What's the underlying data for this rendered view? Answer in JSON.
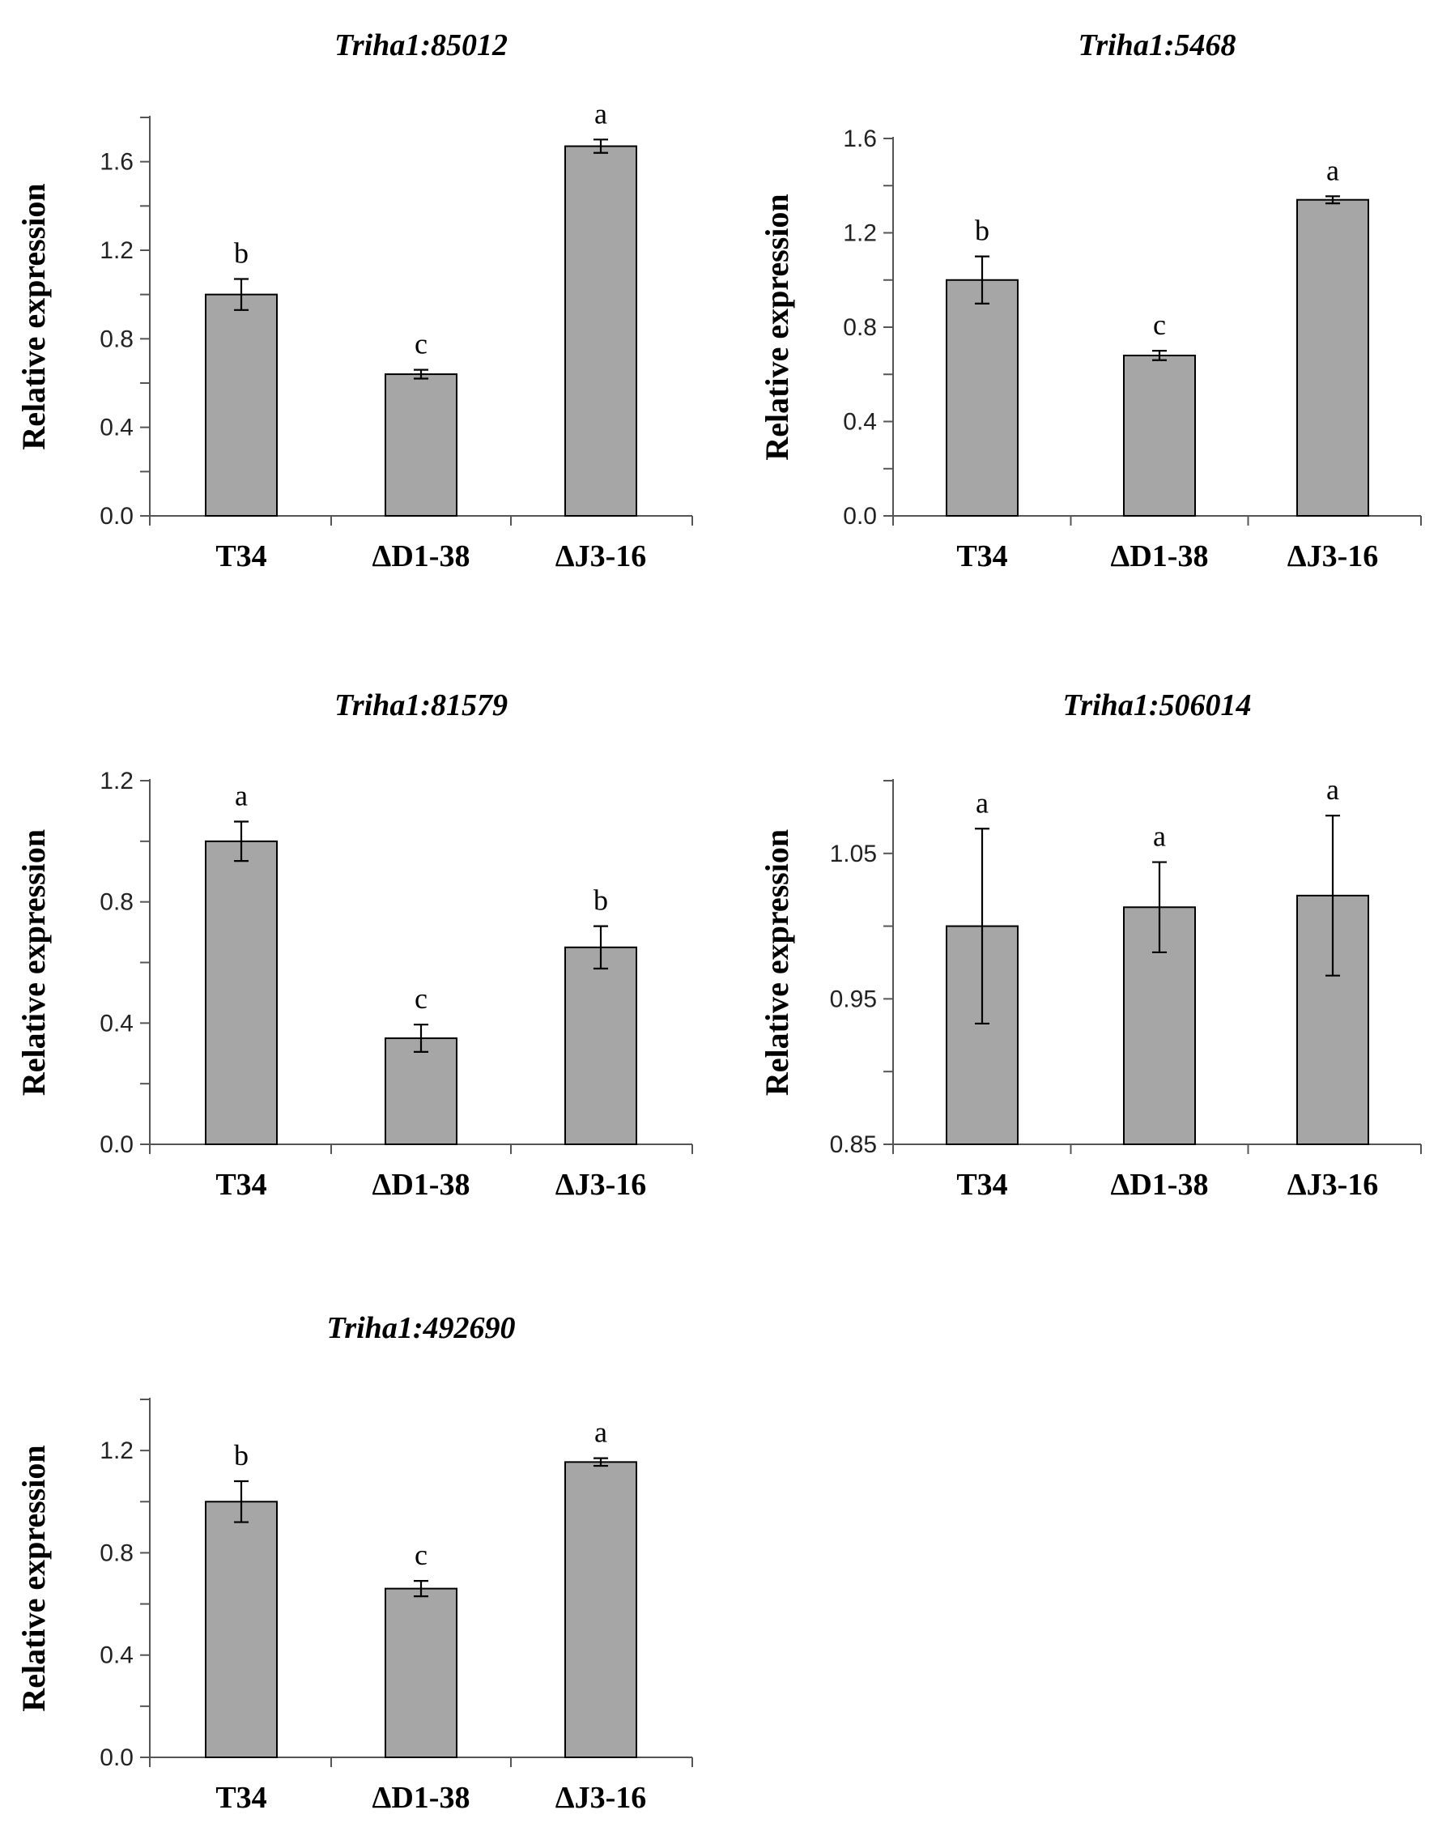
{
  "chart_data": [
    {
      "type": "bar",
      "title": "Triha1:85012",
      "ylabel": "Relative expression",
      "xlabel": "",
      "categories": [
        "T34",
        "ΔD1-38",
        "ΔJ3-16"
      ],
      "values": [
        1.0,
        0.64,
        1.67
      ],
      "errors": [
        0.07,
        0.02,
        0.03
      ],
      "letters": [
        "b",
        "c",
        "a"
      ],
      "ylim": [
        0.0,
        1.8
      ],
      "yticks": [
        "0.0",
        "0.4",
        "0.8",
        "1.2",
        "1.6"
      ]
    },
    {
      "type": "bar",
      "title": "Triha1:5468",
      "ylabel": "Relative expression",
      "xlabel": "",
      "categories": [
        "T34",
        "ΔD1-38",
        "ΔJ3-16"
      ],
      "values": [
        1.0,
        0.68,
        1.34
      ],
      "errors": [
        0.1,
        0.02,
        0.015
      ],
      "letters": [
        "b",
        "c",
        "a"
      ],
      "ylim": [
        0.0,
        1.6
      ],
      "yticks": [
        "0.0",
        "0.4",
        "0.8",
        "1.2",
        "1.6"
      ]
    },
    {
      "type": "bar",
      "title": "Triha1:81579",
      "ylabel": "Relative expression",
      "xlabel": "",
      "categories": [
        "T34",
        "ΔD1-38",
        "ΔJ3-16"
      ],
      "values": [
        1.0,
        0.35,
        0.65
      ],
      "errors": [
        0.065,
        0.045,
        0.07
      ],
      "letters": [
        "a",
        "c",
        "b"
      ],
      "ylim": [
        0.0,
        1.2
      ],
      "yticks": [
        "0.0",
        "0.4",
        "0.8",
        "1.2"
      ]
    },
    {
      "type": "bar",
      "title": "Triha1:506014",
      "ylabel": "Relative expression",
      "xlabel": "",
      "categories": [
        "T34",
        "ΔD1-38",
        "ΔJ3-16"
      ],
      "values": [
        1.0,
        1.013,
        1.021
      ],
      "errors": [
        0.067,
        0.031,
        0.055
      ],
      "letters": [
        "a",
        "a",
        "a"
      ],
      "ylim": [
        0.85,
        1.1
      ],
      "yticks": [
        "0.85",
        "0.95",
        "1.05"
      ]
    },
    {
      "type": "bar",
      "title": "Triha1:492690",
      "ylabel": "Relative expression",
      "xlabel": "",
      "categories": [
        "T34",
        "ΔD1-38",
        "ΔJ3-16"
      ],
      "values": [
        1.0,
        0.66,
        1.155
      ],
      "errors": [
        0.08,
        0.03,
        0.015
      ],
      "letters": [
        "b",
        "c",
        "a"
      ],
      "ylim": [
        0.0,
        1.4
      ],
      "yticks": [
        "0.0",
        "0.4",
        "0.8",
        "1.2"
      ]
    }
  ]
}
